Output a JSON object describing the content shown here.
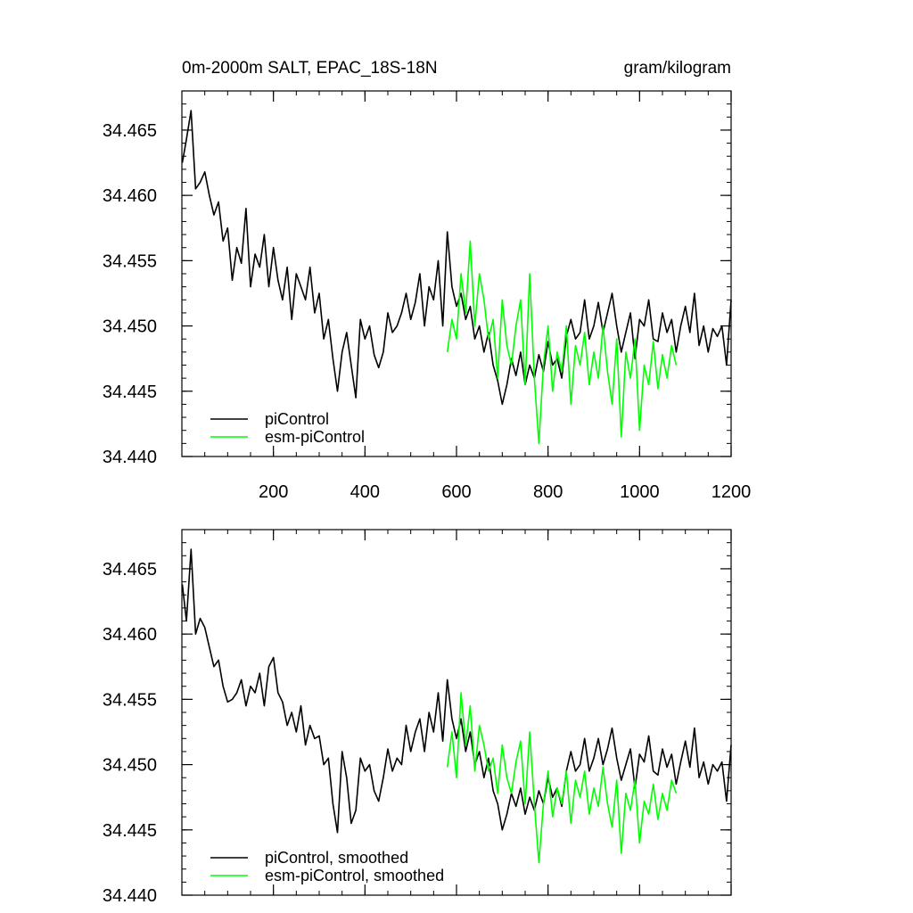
{
  "chart_data": [
    {
      "type": "line",
      "title": "0m-2000m SALT, EPAC_18S-18N",
      "units": "gram/kilogram",
      "xlim": [
        0,
        1200
      ],
      "ylim": [
        34.44,
        34.468
      ],
      "xticks": [
        200,
        400,
        600,
        800,
        1000,
        1200
      ],
      "yticks": [
        34.44,
        34.445,
        34.45,
        34.455,
        34.46,
        34.465
      ],
      "x_tick_labels_shown": true,
      "legend_position": "bottom-left",
      "series": [
        {
          "name": "piControl",
          "color": "#000000",
          "x": [
            1,
            10,
            20,
            30,
            40,
            50,
            60,
            70,
            80,
            90,
            100,
            110,
            120,
            130,
            140,
            150,
            160,
            170,
            180,
            190,
            200,
            210,
            220,
            230,
            240,
            250,
            260,
            270,
            280,
            290,
            300,
            310,
            320,
            330,
            340,
            350,
            360,
            370,
            380,
            390,
            400,
            410,
            420,
            430,
            440,
            450,
            460,
            470,
            480,
            490,
            500,
            510,
            520,
            530,
            540,
            550,
            560,
            570,
            580,
            590,
            600,
            610,
            620,
            630,
            640,
            650,
            660,
            670,
            680,
            690,
            700,
            710,
            720,
            730,
            740,
            750,
            760,
            770,
            780,
            790,
            800,
            810,
            820,
            830,
            840,
            850,
            860,
            870,
            880,
            890,
            900,
            910,
            920,
            930,
            940,
            950,
            960,
            970,
            980,
            990,
            1000,
            1010,
            1020,
            1030,
            1040,
            1050,
            1060,
            1070,
            1080,
            1090,
            1100,
            1110,
            1120,
            1130,
            1140,
            1150,
            1160,
            1170,
            1180,
            1190,
            1200
          ],
          "values": [
            34.4625,
            34.4643,
            34.4665,
            34.4605,
            34.461,
            34.4618,
            34.46,
            34.4585,
            34.4595,
            34.4565,
            34.4575,
            34.4535,
            34.456,
            34.4548,
            34.459,
            34.453,
            34.4555,
            34.4545,
            34.457,
            34.453,
            34.456,
            34.4535,
            34.452,
            34.4545,
            34.4505,
            34.454,
            34.453,
            34.452,
            34.4545,
            34.451,
            34.4525,
            34.449,
            34.4505,
            34.4475,
            34.445,
            34.448,
            34.4495,
            34.447,
            34.4445,
            34.4505,
            34.449,
            34.45,
            34.4478,
            34.4468,
            34.448,
            34.451,
            34.4495,
            34.45,
            34.451,
            34.4525,
            34.4505,
            34.4518,
            34.454,
            34.45,
            34.453,
            34.452,
            34.455,
            34.45,
            34.4572,
            34.453,
            34.4515,
            34.4525,
            34.4505,
            34.4515,
            34.449,
            34.45,
            34.448,
            34.4495,
            34.447,
            34.4458,
            34.444,
            34.4455,
            34.4475,
            34.4462,
            34.448,
            34.4455,
            34.447,
            34.446,
            34.4478,
            34.4465,
            34.4488,
            34.447,
            34.4475,
            34.446,
            34.4492,
            34.4505,
            34.449,
            34.4495,
            34.452,
            34.449,
            34.45,
            34.4518,
            34.4495,
            34.451,
            34.4525,
            34.45,
            34.448,
            34.4495,
            34.451,
            34.4475,
            34.4505,
            34.45,
            34.452,
            34.449,
            34.4488,
            34.451,
            34.4495,
            34.4505,
            34.448,
            34.45,
            34.4515,
            34.4495,
            34.4525,
            34.4485,
            34.45,
            34.448,
            34.4498,
            34.4492,
            34.45,
            34.447,
            34.452
          ]
        },
        {
          "name": "esm-piControl",
          "color": "#00ff00",
          "x": [
            580,
            590,
            600,
            610,
            620,
            630,
            640,
            650,
            660,
            670,
            680,
            690,
            700,
            710,
            720,
            730,
            740,
            750,
            760,
            770,
            780,
            790,
            800,
            810,
            820,
            830,
            840,
            850,
            860,
            870,
            880,
            890,
            900,
            910,
            920,
            930,
            940,
            950,
            960,
            970,
            980,
            990,
            1000,
            1010,
            1020,
            1030,
            1040,
            1050,
            1060,
            1070,
            1080
          ],
          "values": [
            34.448,
            34.4505,
            34.449,
            34.454,
            34.451,
            34.4565,
            34.45,
            34.454,
            34.452,
            34.449,
            34.4505,
            34.446,
            34.452,
            34.4485,
            34.447,
            34.45,
            34.452,
            34.4455,
            34.454,
            34.446,
            34.441,
            34.447,
            34.45,
            34.445,
            34.448,
            34.4465,
            34.45,
            34.444,
            34.4485,
            34.447,
            34.4495,
            34.4455,
            34.448,
            34.446,
            34.45,
            34.4465,
            34.444,
            34.449,
            34.4415,
            34.448,
            34.446,
            34.449,
            34.442,
            34.447,
            34.4455,
            34.4488,
            34.4452,
            34.4478,
            34.446,
            34.4485,
            34.447
          ]
        }
      ]
    },
    {
      "type": "line",
      "title": "",
      "xlim": [
        0,
        1200
      ],
      "ylim": [
        34.44,
        34.468
      ],
      "xticks": [
        200,
        400,
        600,
        800,
        1000,
        1200
      ],
      "yticks": [
        34.44,
        34.445,
        34.45,
        34.455,
        34.46,
        34.465
      ],
      "x_tick_labels_shown": false,
      "legend_position": "bottom-left",
      "series": [
        {
          "name": "piControl, smoothed",
          "color": "#000000",
          "x": [
            1,
            10,
            20,
            30,
            40,
            50,
            60,
            70,
            80,
            90,
            100,
            110,
            120,
            130,
            140,
            150,
            160,
            170,
            180,
            190,
            200,
            210,
            220,
            230,
            240,
            250,
            260,
            270,
            280,
            290,
            300,
            310,
            320,
            330,
            340,
            350,
            360,
            370,
            380,
            390,
            400,
            410,
            420,
            430,
            440,
            450,
            460,
            470,
            480,
            490,
            500,
            510,
            520,
            530,
            540,
            550,
            560,
            570,
            580,
            590,
            600,
            610,
            620,
            630,
            640,
            650,
            660,
            670,
            680,
            690,
            700,
            710,
            720,
            730,
            740,
            750,
            760,
            770,
            780,
            790,
            800,
            810,
            820,
            830,
            840,
            850,
            860,
            870,
            880,
            890,
            900,
            910,
            920,
            930,
            940,
            950,
            960,
            970,
            980,
            990,
            1000,
            1010,
            1020,
            1030,
            1040,
            1050,
            1060,
            1070,
            1080,
            1090,
            1100,
            1110,
            1120,
            1130,
            1140,
            1150,
            1160,
            1170,
            1180,
            1190,
            1200
          ],
          "values": [
            34.4638,
            34.461,
            34.4665,
            34.46,
            34.4612,
            34.4605,
            34.459,
            34.4575,
            34.458,
            34.456,
            34.4548,
            34.455,
            34.4555,
            34.4565,
            34.4545,
            34.456,
            34.4555,
            34.457,
            34.4545,
            34.4575,
            34.4582,
            34.4555,
            34.4548,
            34.453,
            34.454,
            34.4525,
            34.4545,
            34.4515,
            34.453,
            34.452,
            34.4522,
            34.45,
            34.4505,
            34.447,
            34.4448,
            34.451,
            34.449,
            34.4455,
            34.4465,
            34.4505,
            34.4495,
            34.45,
            34.448,
            34.4472,
            34.449,
            34.4512,
            34.4495,
            34.4505,
            34.45,
            34.453,
            34.451,
            34.4525,
            34.4535,
            34.451,
            34.454,
            34.4525,
            34.4555,
            34.4518,
            34.4565,
            34.4535,
            34.452,
            34.4535,
            34.451,
            34.4525,
            34.45,
            34.451,
            34.449,
            34.4505,
            34.448,
            34.447,
            34.445,
            34.4462,
            34.4478,
            34.4468,
            34.4482,
            34.4462,
            34.4475,
            34.4465,
            34.448,
            34.447,
            34.449,
            34.4475,
            34.4482,
            34.4468,
            34.4495,
            34.451,
            34.4495,
            34.45,
            34.452,
            34.4495,
            34.4505,
            34.452,
            34.45,
            34.4512,
            34.4528,
            34.4505,
            34.4488,
            34.45,
            34.4512,
            34.4482,
            34.4508,
            34.4502,
            34.4522,
            34.4495,
            34.4492,
            34.4512,
            34.4498,
            34.4508,
            34.4485,
            34.4502,
            34.4518,
            34.4498,
            34.4528,
            34.449,
            34.4502,
            34.4485,
            34.45,
            34.4495,
            34.4502,
            34.4472,
            34.4515
          ]
        },
        {
          "name": "esm-piControl, smoothed",
          "color": "#00ff00",
          "x": [
            580,
            590,
            600,
            610,
            620,
            630,
            640,
            650,
            660,
            670,
            680,
            690,
            700,
            710,
            720,
            730,
            740,
            750,
            760,
            770,
            780,
            790,
            800,
            810,
            820,
            830,
            840,
            850,
            860,
            870,
            880,
            890,
            900,
            910,
            920,
            930,
            940,
            950,
            960,
            970,
            980,
            990,
            1000,
            1010,
            1020,
            1030,
            1040,
            1050,
            1060,
            1070,
            1080
          ],
          "values": [
            34.4498,
            34.4525,
            34.449,
            34.4555,
            34.4515,
            34.4545,
            34.4495,
            34.453,
            34.4515,
            34.4495,
            34.4505,
            34.4478,
            34.4515,
            34.449,
            34.4478,
            34.4502,
            34.4518,
            34.447,
            34.4525,
            34.447,
            34.4425,
            34.447,
            34.4495,
            34.446,
            34.4482,
            34.447,
            34.4495,
            34.4455,
            34.4488,
            34.4475,
            34.4495,
            34.4462,
            34.4482,
            34.4468,
            34.4498,
            34.447,
            34.4452,
            34.4488,
            34.4432,
            34.4478,
            34.4465,
            34.4488,
            34.444,
            34.4472,
            34.4462,
            34.4485,
            34.4458,
            34.4478,
            34.4465,
            34.4488,
            34.4478
          ]
        }
      ]
    }
  ]
}
